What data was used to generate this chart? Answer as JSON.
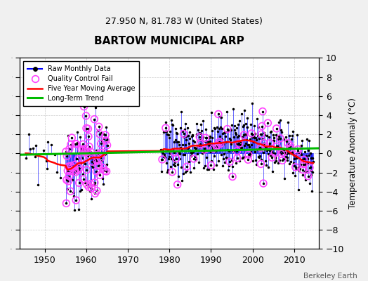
{
  "title": "BARTOW MUNICIPAL ARP",
  "subtitle": "27.950 N, 81.783 W (United States)",
  "ylabel": "Temperature Anomaly (°C)",
  "credit": "Berkeley Earth",
  "xlim": [
    1944,
    2016
  ],
  "ylim": [
    -10,
    10
  ],
  "yticks": [
    -10,
    -8,
    -6,
    -4,
    -2,
    0,
    2,
    4,
    6,
    8,
    10
  ],
  "xticks": [
    1950,
    1960,
    1970,
    1980,
    1990,
    2000,
    2010
  ],
  "bg_color": "#f0f0f0",
  "plot_bg_color": "#ffffff",
  "raw_line_color": "#0000ff",
  "moving_avg_color": "#ff0000",
  "trend_color": "#00bb00",
  "qc_fail_color": "#ff44ff"
}
